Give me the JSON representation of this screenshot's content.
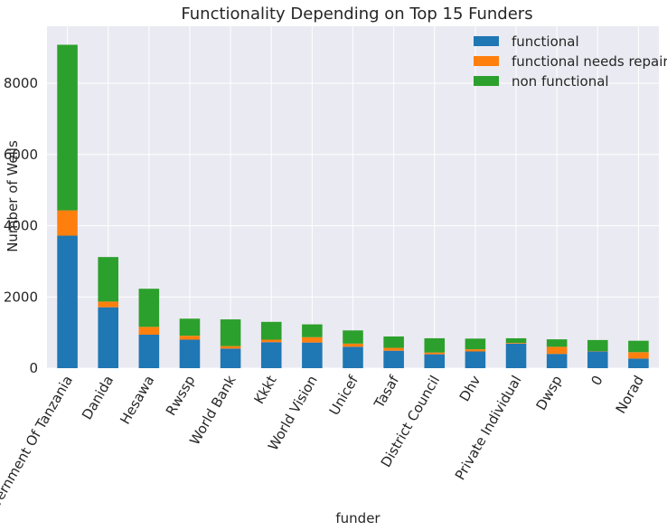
{
  "chart_data": {
    "type": "bar",
    "stacked": true,
    "title": "Functionality Depending on Top 15 Funders",
    "xlabel": "funder",
    "ylabel": "Number of Wells",
    "ylim": [
      0,
      9600
    ],
    "yticks": [
      0,
      2000,
      4000,
      6000,
      8000
    ],
    "grid": true,
    "legend_position": "top-right",
    "categories": [
      "Government Of Tanzania",
      "Danida",
      "Hesawa",
      "Rwssp",
      "World Bank",
      "Kkkt",
      "World Vision",
      "Unicef",
      "Tasaf",
      "District Council",
      "Dhv",
      "Private Individual",
      "Dwsp",
      "0",
      "Norad"
    ],
    "series": [
      {
        "name": "functional",
        "color": "#1f77b4",
        "values": [
          3720,
          1710,
          940,
          800,
          550,
          730,
          720,
          600,
          490,
          390,
          470,
          690,
          400,
          470,
          270
        ]
      },
      {
        "name": "functional needs repair",
        "color": "#ff7f0e",
        "values": [
          710,
          160,
          220,
          110,
          70,
          70,
          150,
          90,
          80,
          50,
          60,
          20,
          200,
          10,
          180
        ]
      },
      {
        "name": "non functional",
        "color": "#2ca02c",
        "values": [
          4650,
          1250,
          1070,
          480,
          750,
          500,
          360,
          370,
          320,
          400,
          300,
          130,
          210,
          310,
          320
        ]
      }
    ]
  }
}
